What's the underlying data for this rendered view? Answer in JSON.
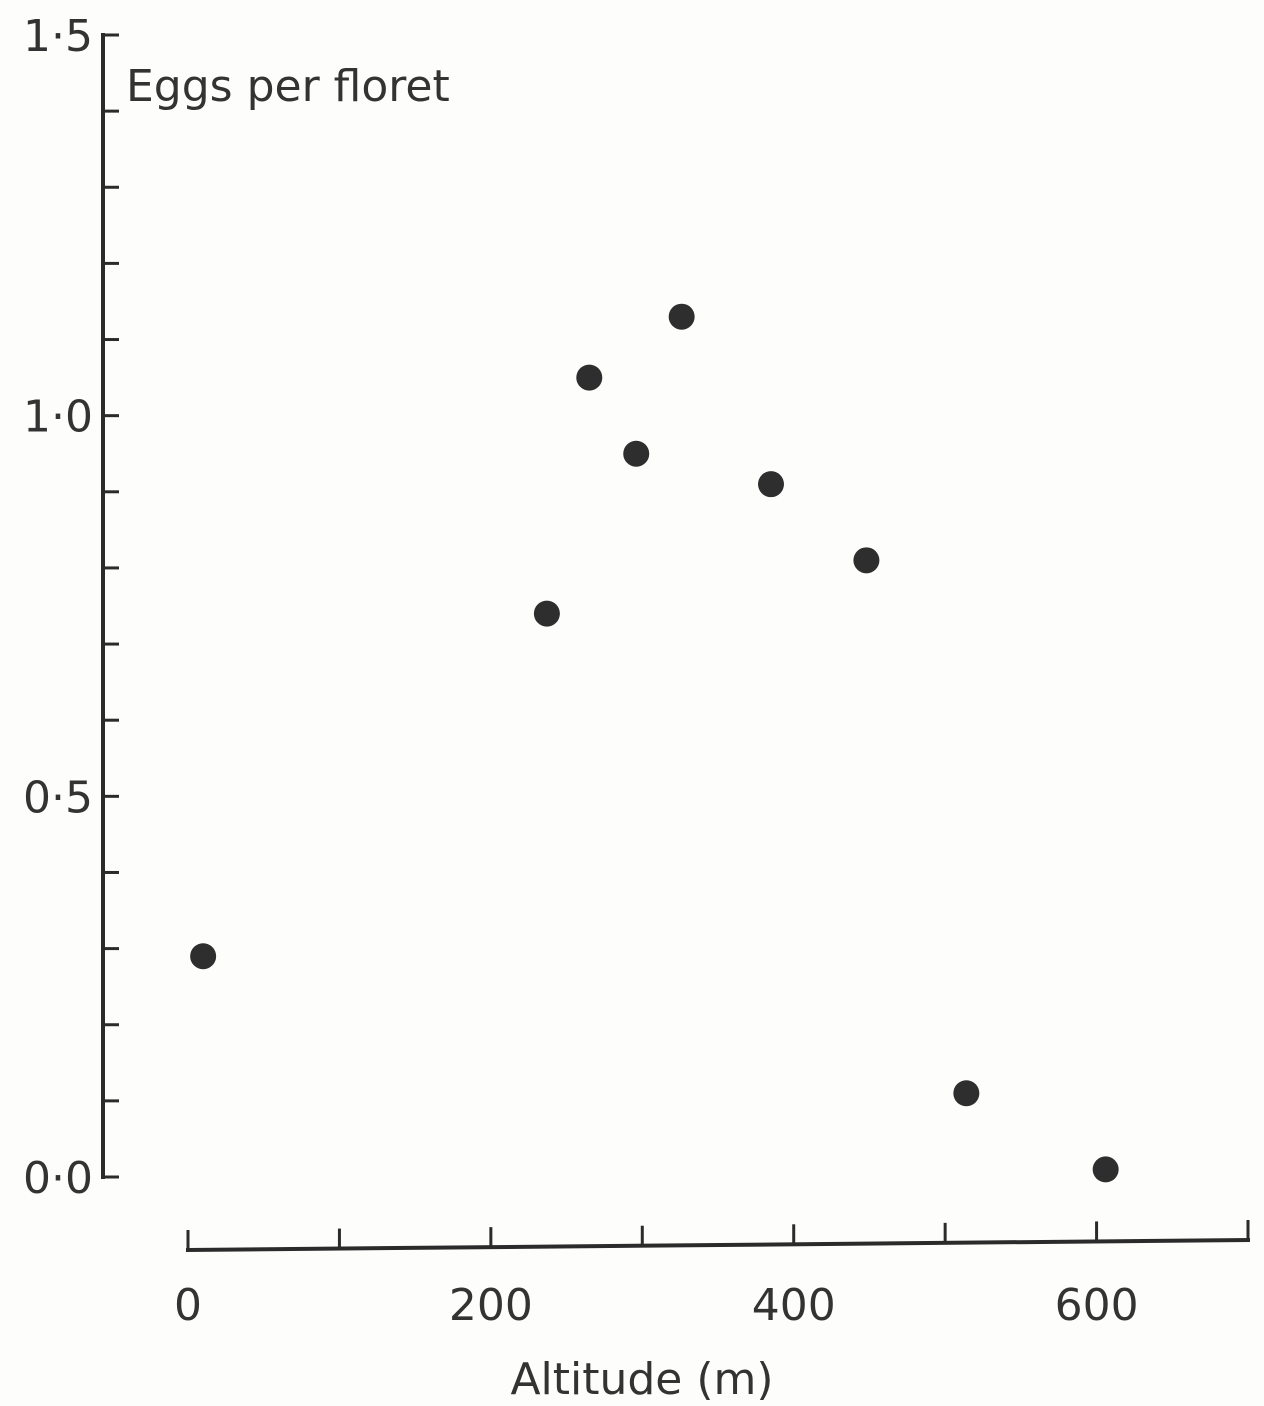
{
  "chart_data": {
    "type": "scatter",
    "title": "",
    "xlabel": "Altitude (m)",
    "ylabel": "Eggs per floret",
    "xlim": [
      0,
      700
    ],
    "ylim": [
      0,
      1.5
    ],
    "x_ticks_major": [
      0,
      200,
      400,
      600
    ],
    "x_tick_labels": [
      "0",
      "200",
      "400",
      "600"
    ],
    "x_ticks_minor": [
      100,
      300,
      500,
      700
    ],
    "y_ticks_major": [
      0,
      0.5,
      1.0,
      1.5
    ],
    "y_tick_labels": [
      "0·0",
      "0·5",
      "1·0",
      "1·5"
    ],
    "y_ticks_minor": [
      0.1,
      0.2,
      0.3,
      0.4,
      0.6,
      0.7,
      0.8,
      0.9,
      1.1,
      1.2,
      1.3,
      1.4
    ],
    "grid": false,
    "colors": {
      "axis": "#2b2b2b",
      "point": "#2e2e2e",
      "text": "#333333"
    },
    "points": [
      {
        "x": 10,
        "y": 0.29
      },
      {
        "x": 237,
        "y": 0.74
      },
      {
        "x": 265,
        "y": 1.05
      },
      {
        "x": 296,
        "y": 0.95
      },
      {
        "x": 326,
        "y": 1.13
      },
      {
        "x": 385,
        "y": 0.91
      },
      {
        "x": 448,
        "y": 0.81
      },
      {
        "x": 514,
        "y": 0.11
      },
      {
        "x": 606,
        "y": 0.01
      }
    ]
  }
}
